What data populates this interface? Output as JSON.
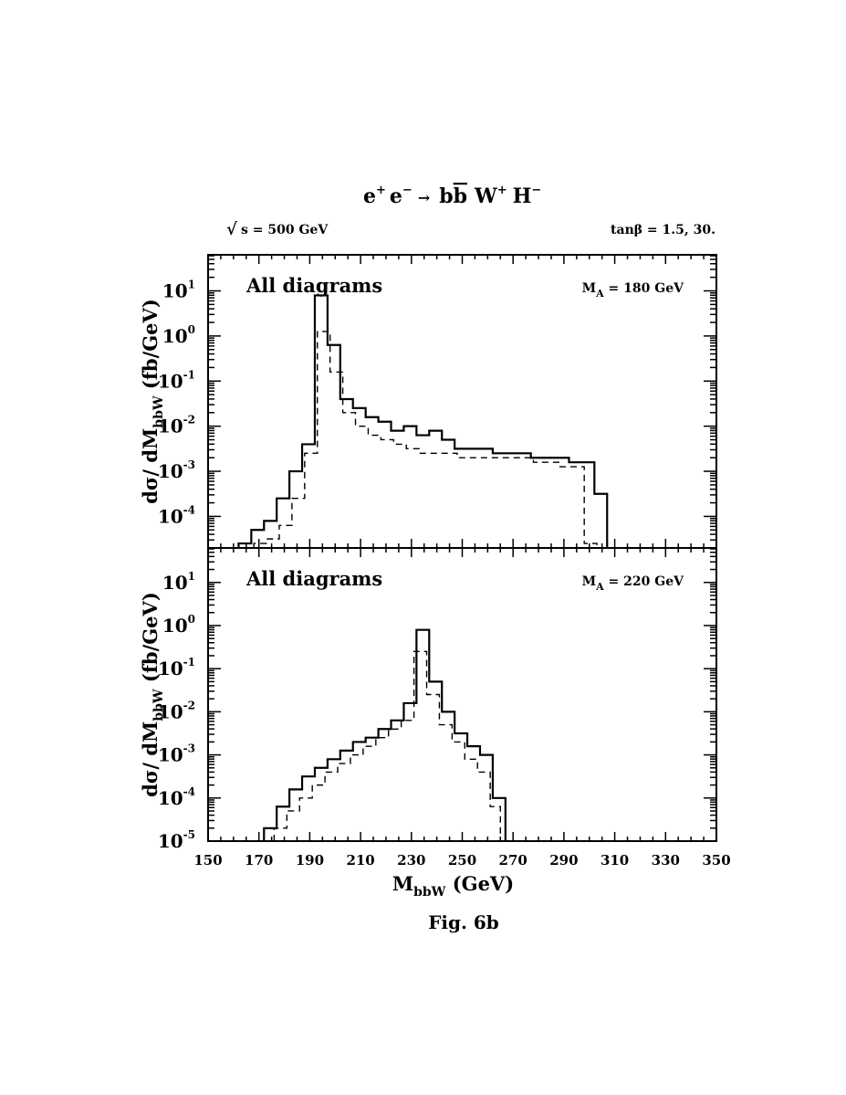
{
  "header": {
    "process": {
      "a": "e",
      "a_sup": "+",
      "b": "e",
      "b_sup": "−",
      "arrow": "→",
      "c": "b",
      "d": "b",
      "e": "W",
      "e_sup": "+",
      "f": "H",
      "f_sup": "−"
    },
    "sqrt_s_sym": "√",
    "sqrt_s_label": "s =  500 GeV",
    "tan_beta_label": "tanβ = 1.5, 30."
  },
  "caption": "Fig. 6b",
  "chart_data": [
    {
      "type": "histogram",
      "annotation": "All diagrams",
      "mass_label": {
        "main": "M",
        "sub": "A",
        "rest": " = 180 GeV"
      },
      "ylabel": {
        "pre": "dσ/ dM",
        "sub": "bbW",
        "post": " (fb/GeV)"
      },
      "xlim": [
        150,
        350
      ],
      "ylim_log10": [
        -4.7,
        1.8
      ],
      "bin_width": 5,
      "y_ticks": [
        {
          "base": "10",
          "exp": "1",
          "v": 1
        },
        {
          "base": "10",
          "exp": "0",
          "v": 0
        },
        {
          "base": "10",
          "exp": "-1",
          "v": -1
        },
        {
          "base": "10",
          "exp": "-2",
          "v": -2
        },
        {
          "base": "10",
          "exp": "-3",
          "v": -3
        },
        {
          "base": "10",
          "exp": "-4",
          "v": -4
        }
      ],
      "series": [
        {
          "style": "solid",
          "bins": [
            [
              162,
              167,
              -4.6
            ],
            [
              167,
              172,
              -4.3
            ],
            [
              172,
              177,
              -4.1
            ],
            [
              177,
              182,
              -3.6
            ],
            [
              182,
              187,
              -3.0
            ],
            [
              187,
              192,
              -2.4
            ],
            [
              192,
              197,
              0.9
            ],
            [
              197,
              202,
              -0.2
            ],
            [
              202,
              207,
              -1.4
            ],
            [
              207,
              212,
              -1.6
            ],
            [
              212,
              217,
              -1.8
            ],
            [
              217,
              222,
              -1.9
            ],
            [
              222,
              227,
              -2.1
            ],
            [
              227,
              232,
              -2.0
            ],
            [
              232,
              237,
              -2.2
            ],
            [
              237,
              242,
              -2.1
            ],
            [
              242,
              247,
              -2.3
            ],
            [
              247,
              252,
              -2.5
            ],
            [
              252,
              257,
              -2.5
            ],
            [
              257,
              262,
              -2.5
            ],
            [
              262,
              267,
              -2.6
            ],
            [
              267,
              272,
              -2.6
            ],
            [
              272,
              277,
              -2.6
            ],
            [
              277,
              282,
              -2.7
            ],
            [
              282,
              287,
              -2.7
            ],
            [
              287,
              292,
              -2.7
            ],
            [
              292,
              297,
              -2.8
            ],
            [
              297,
              302,
              -2.8
            ],
            [
              302,
              307,
              -3.5
            ]
          ]
        },
        {
          "style": "dashed",
          "bins": [
            [
              168,
              173,
              -4.6
            ],
            [
              173,
              178,
              -4.5
            ],
            [
              178,
              183,
              -4.2
            ],
            [
              183,
              188,
              -3.6
            ],
            [
              188,
              193,
              -2.6
            ],
            [
              193,
              198,
              0.1
            ],
            [
              198,
              203,
              -0.8
            ],
            [
              203,
              208,
              -1.7
            ],
            [
              208,
              213,
              -2.0
            ],
            [
              213,
              218,
              -2.2
            ],
            [
              218,
              223,
              -2.3
            ],
            [
              223,
              228,
              -2.4
            ],
            [
              228,
              233,
              -2.5
            ],
            [
              233,
              238,
              -2.6
            ],
            [
              238,
              243,
              -2.6
            ],
            [
              243,
              248,
              -2.6
            ],
            [
              248,
              253,
              -2.7
            ],
            [
              253,
              258,
              -2.7
            ],
            [
              258,
              263,
              -2.7
            ],
            [
              263,
              268,
              -2.7
            ],
            [
              268,
              273,
              -2.7
            ],
            [
              273,
              278,
              -2.7
            ],
            [
              278,
              283,
              -2.8
            ],
            [
              283,
              288,
              -2.8
            ],
            [
              288,
              293,
              -2.9
            ],
            [
              293,
              298,
              -2.9
            ],
            [
              298,
              303,
              -4.6
            ]
          ]
        }
      ]
    },
    {
      "type": "histogram",
      "annotation": "All diagrams",
      "mass_label": {
        "main": "M",
        "sub": "A",
        "rest": " = 220 GeV"
      },
      "ylabel": {
        "pre": "dσ/ dM",
        "sub": "bbW",
        "post": " (fb/GeV)"
      },
      "xlabel": {
        "main": "M",
        "sub": "bbW",
        "rest": " (GeV)"
      },
      "xlim": [
        150,
        350
      ],
      "ylim_log10": [
        -5,
        1.8
      ],
      "bin_width": 5,
      "x_ticks": [
        "150",
        "170",
        "190",
        "210",
        "230",
        "250",
        "270",
        "290",
        "310",
        "330",
        "350"
      ],
      "y_ticks": [
        {
          "base": "10",
          "exp": "1",
          "v": 1
        },
        {
          "base": "10",
          "exp": "0",
          "v": 0
        },
        {
          "base": "10",
          "exp": "-1",
          "v": -1
        },
        {
          "base": "10",
          "exp": "-2",
          "v": -2
        },
        {
          "base": "10",
          "exp": "-3",
          "v": -3
        },
        {
          "base": "10",
          "exp": "-4",
          "v": -4
        },
        {
          "base": "10",
          "exp": "-5",
          "v": -5
        }
      ],
      "series": [
        {
          "style": "solid",
          "bins": [
            [
              172,
              177,
              -4.7
            ],
            [
              177,
              182,
              -4.2
            ],
            [
              182,
              187,
              -3.8
            ],
            [
              187,
              192,
              -3.5
            ],
            [
              192,
              197,
              -3.3
            ],
            [
              197,
              202,
              -3.1
            ],
            [
              202,
              207,
              -2.9
            ],
            [
              207,
              212,
              -2.7
            ],
            [
              212,
              217,
              -2.6
            ],
            [
              217,
              222,
              -2.4
            ],
            [
              222,
              227,
              -2.2
            ],
            [
              227,
              232,
              -1.8
            ],
            [
              232,
              237,
              -0.1
            ],
            [
              237,
              242,
              -1.3
            ],
            [
              242,
              247,
              -2.0
            ],
            [
              247,
              252,
              -2.5
            ],
            [
              252,
              257,
              -2.8
            ],
            [
              257,
              262,
              -3.0
            ],
            [
              262,
              267,
              -4.0
            ],
            [
              267,
              268,
              -5.0
            ]
          ]
        },
        {
          "style": "dashed",
          "bins": [
            [
              176,
              181,
              -4.7
            ],
            [
              181,
              186,
              -4.3
            ],
            [
              186,
              191,
              -4.0
            ],
            [
              191,
              196,
              -3.7
            ],
            [
              196,
              201,
              -3.4
            ],
            [
              201,
              206,
              -3.2
            ],
            [
              206,
              211,
              -3.0
            ],
            [
              211,
              216,
              -2.8
            ],
            [
              216,
              221,
              -2.6
            ],
            [
              221,
              226,
              -2.4
            ],
            [
              226,
              231,
              -2.2
            ],
            [
              231,
              236,
              -0.6
            ],
            [
              236,
              241,
              -1.6
            ],
            [
              241,
              246,
              -2.3
            ],
            [
              246,
              251,
              -2.7
            ],
            [
              251,
              256,
              -3.1
            ],
            [
              256,
              261,
              -3.4
            ],
            [
              261,
              265,
              -4.2
            ]
          ]
        }
      ]
    }
  ]
}
